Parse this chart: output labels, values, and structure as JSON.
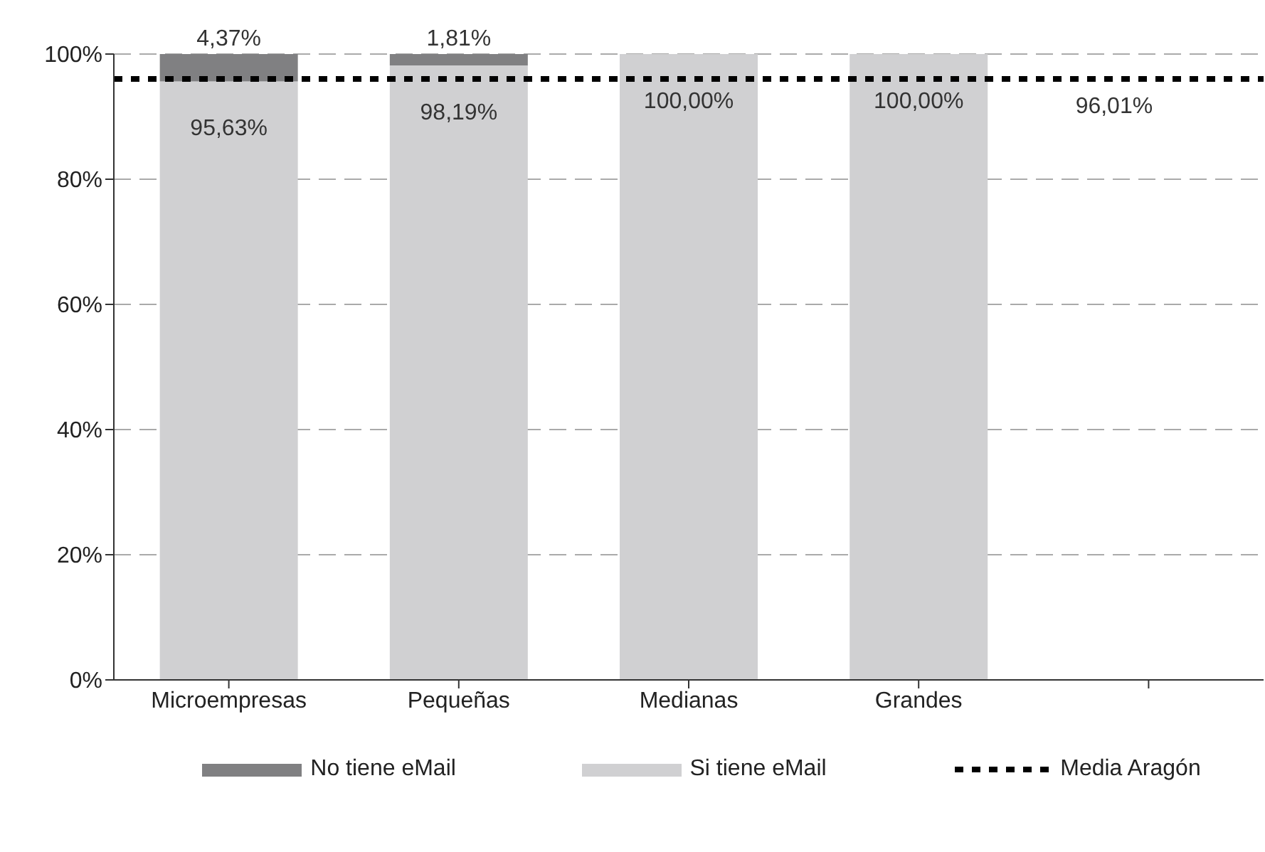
{
  "chart_data": {
    "type": "bar",
    "stacked": true,
    "categories": [
      "Microempresas",
      "Pequeñas",
      "Medianas",
      "Grandes",
      null
    ],
    "series": [
      {
        "name": "Si tiene eMail",
        "color": "#d0d0d2",
        "values": [
          95.63,
          98.19,
          100,
          100,
          null
        ],
        "value_labels": [
          "95,63%",
          "98,19%",
          "100,00%",
          "100,00%",
          null
        ]
      },
      {
        "name": "No tiene eMail",
        "color": "#808082",
        "values": [
          4.37,
          1.81,
          null,
          null,
          null
        ],
        "value_labels": [
          "4,37%",
          "1,81%",
          null,
          null,
          null
        ]
      }
    ],
    "ylim": [
      0,
      100
    ],
    "yticks": [
      {
        "value": 0,
        "label": "0%"
      },
      {
        "value": 20,
        "label": "20%"
      },
      {
        "value": 40,
        "label": "40%"
      },
      {
        "value": 60,
        "label": "60%"
      },
      {
        "value": 80,
        "label": "80%"
      },
      {
        "value": 100,
        "label": "100%"
      }
    ],
    "grid": "y",
    "legend": "bottom",
    "ref_lines": [
      {
        "axis": "y",
        "value": 96.01,
        "label": "Media Aragón",
        "color": "#000000",
        "line_style": "dotted"
      }
    ],
    "annotations": [
      {
        "text": "96,01%",
        "y": 96.01
      }
    ]
  }
}
